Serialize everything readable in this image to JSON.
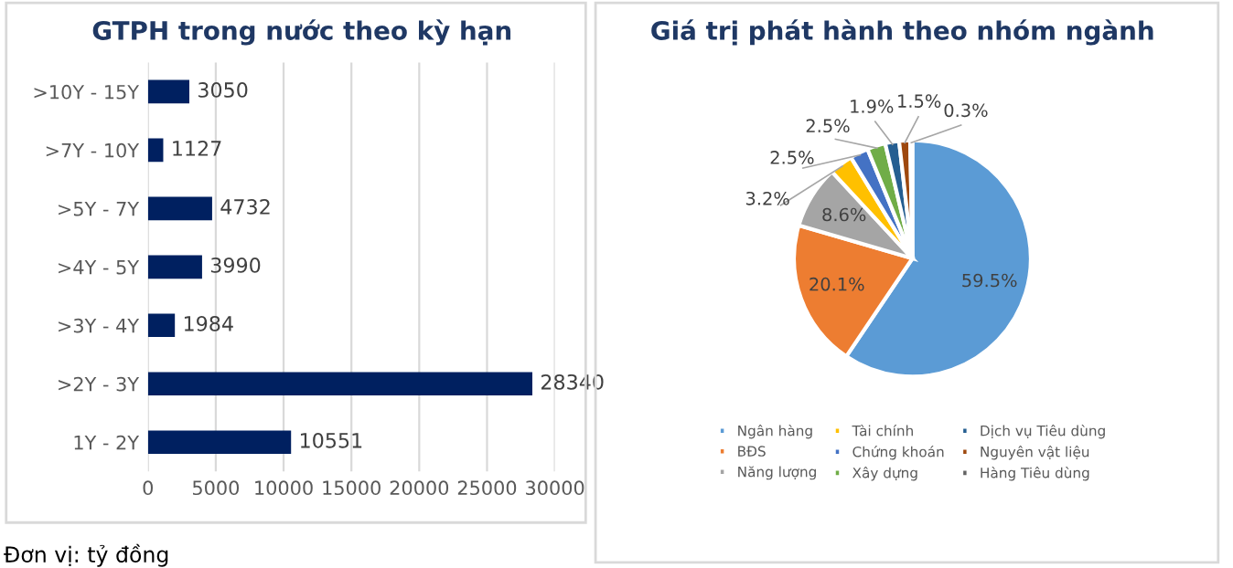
{
  "chart_data": [
    {
      "type": "bar",
      "orientation": "horizontal",
      "title": "GTPH trong nước theo kỳ hạn",
      "categories": [
        ">10Y - 15Y",
        ">7Y - 10Y",
        ">5Y - 7Y",
        ">4Y - 5Y",
        ">3Y - 4Y",
        ">2Y - 3Y",
        "1Y - 2Y"
      ],
      "values": [
        3050,
        1127,
        4732,
        3990,
        1984,
        28340,
        10551
      ],
      "color": "#002060",
      "xlim": [
        0,
        30000
      ],
      "xticks": [
        0,
        5000,
        10000,
        15000,
        20000,
        25000,
        30000
      ],
      "grid": "x",
      "data_labels": true,
      "annotations": [
        "Đơn vị: tỷ đồng"
      ]
    },
    {
      "type": "pie",
      "title": "Giá trị phát hành theo nhóm ngành",
      "categories": [
        "Ngân hàng",
        "BĐS",
        "Năng lượng",
        "Tài chính",
        "Chứng khoán",
        "Xây dựng",
        "Dịch vụ Tiêu dùng",
        "Nguyên vật liệu",
        "Hàng Tiêu dùng"
      ],
      "values": [
        59.5,
        20.1,
        8.6,
        3.2,
        2.5,
        2.5,
        1.9,
        1.5,
        0.3
      ],
      "colors": [
        "#5b9bd5",
        "#ed7d31",
        "#a5a5a5",
        "#ffc000",
        "#4472c4",
        "#70ad47",
        "#255e91",
        "#9e480e",
        "#636363"
      ],
      "value_labels": [
        "59.5%",
        "20.1%",
        "8.6%",
        "3.2%",
        "2.5%",
        "2.5%",
        "1.9%",
        "1.5%",
        "0.3%"
      ],
      "legend": "bottom"
    }
  ]
}
